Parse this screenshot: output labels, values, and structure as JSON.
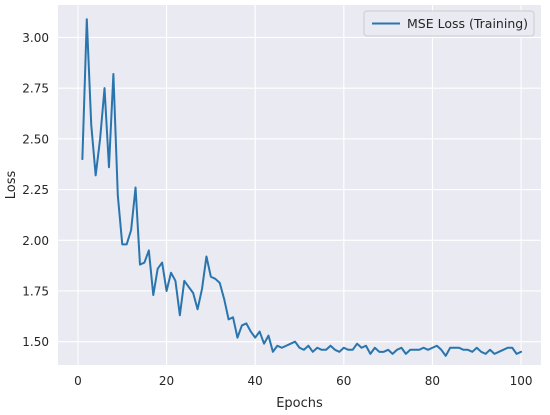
{
  "chart_data": {
    "type": "line",
    "title": "",
    "xlabel": "Epochs",
    "ylabel": "Loss",
    "xlim": [
      -4.5,
      104.5
    ],
    "ylim": [
      1.385,
      3.16
    ],
    "xticks": [
      0,
      20,
      40,
      60,
      80,
      100
    ],
    "yticks": [
      1.5,
      1.75,
      2.0,
      2.25,
      2.5,
      2.75,
      3.0
    ],
    "ytick_labels": [
      "1.50",
      "1.75",
      "2.00",
      "2.25",
      "2.50",
      "2.75",
      "3.00"
    ],
    "grid": true,
    "legend": "top-right",
    "background": "#eaeaf2",
    "grid_color": "#ffffff",
    "series": [
      {
        "name": "MSE Loss (Training)",
        "color": "#2a75ad",
        "x": [
          1,
          2,
          3,
          4,
          5,
          6,
          7,
          8,
          9,
          10,
          11,
          12,
          13,
          14,
          15,
          16,
          17,
          18,
          19,
          20,
          21,
          22,
          23,
          24,
          25,
          26,
          27,
          28,
          29,
          30,
          31,
          32,
          33,
          34,
          35,
          36,
          37,
          38,
          39,
          40,
          41,
          42,
          43,
          44,
          45,
          46,
          47,
          48,
          49,
          50,
          51,
          52,
          53,
          54,
          55,
          56,
          57,
          58,
          59,
          60,
          61,
          62,
          63,
          64,
          65,
          66,
          67,
          68,
          69,
          70,
          71,
          72,
          73,
          74,
          75,
          76,
          77,
          78,
          79,
          80,
          81,
          82,
          83,
          84,
          85,
          86,
          87,
          88,
          89,
          90,
          91,
          92,
          93,
          94,
          95,
          96,
          97,
          98,
          99,
          100
        ],
        "values": [
          2.4,
          3.09,
          2.57,
          2.32,
          2.5,
          2.75,
          2.36,
          2.82,
          2.22,
          1.98,
          1.98,
          2.05,
          2.26,
          1.88,
          1.89,
          1.95,
          1.73,
          1.86,
          1.89,
          1.75,
          1.84,
          1.8,
          1.63,
          1.8,
          1.77,
          1.74,
          1.66,
          1.76,
          1.92,
          1.82,
          1.81,
          1.79,
          1.71,
          1.61,
          1.62,
          1.52,
          1.58,
          1.59,
          1.55,
          1.52,
          1.55,
          1.49,
          1.53,
          1.45,
          1.48,
          1.47,
          1.48,
          1.49,
          1.5,
          1.47,
          1.46,
          1.48,
          1.45,
          1.47,
          1.46,
          1.46,
          1.48,
          1.46,
          1.45,
          1.47,
          1.46,
          1.46,
          1.49,
          1.47,
          1.48,
          1.44,
          1.47,
          1.45,
          1.45,
          1.46,
          1.44,
          1.46,
          1.47,
          1.44,
          1.46,
          1.46,
          1.46,
          1.47,
          1.46,
          1.47,
          1.48,
          1.46,
          1.43,
          1.47,
          1.47,
          1.47,
          1.46,
          1.46,
          1.45,
          1.47,
          1.45,
          1.44,
          1.46,
          1.44,
          1.45,
          1.46,
          1.47,
          1.47,
          1.44,
          1.45
        ]
      }
    ]
  }
}
